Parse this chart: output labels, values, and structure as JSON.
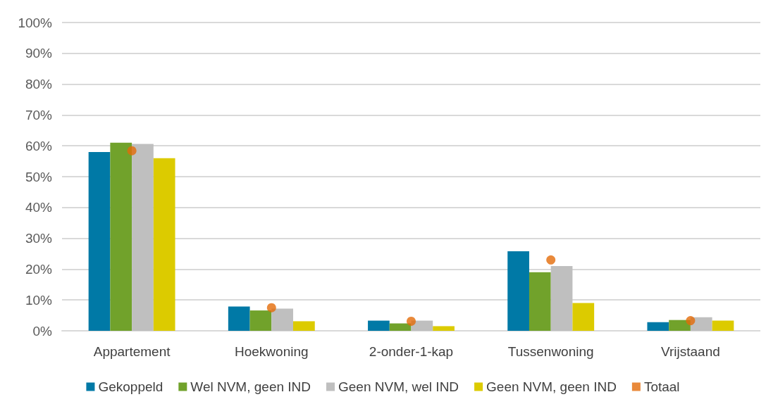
{
  "chart_data": {
    "type": "bar",
    "categories": [
      "Appartement",
      "Hoekwoning",
      "2-onder-1-kap",
      "Tussenwoning",
      "Vrijstaand"
    ],
    "series": [
      {
        "name": "Gekoppeld",
        "color": "#0079a6",
        "values": [
          58,
          7.9,
          3.3,
          25.8,
          2.8
        ]
      },
      {
        "name": "Wel NVM, geen IND",
        "color": "#71a22b",
        "values": [
          61,
          6.6,
          2.4,
          19,
          3.5
        ]
      },
      {
        "name": "Geen NVM, wel IND",
        "color": "#bfbfbf",
        "values": [
          60.6,
          7.2,
          3.3,
          21,
          4.4
        ]
      },
      {
        "name": "Geen NVM, geen IND",
        "color": "#dccb00",
        "values": [
          56,
          3.1,
          1.5,
          9,
          3.3
        ]
      },
      {
        "name": "Totaal",
        "type": "scatter",
        "marker": "circle",
        "color": "#e36c09",
        "x": [
          "Appartement",
          "Hoekwoning",
          "2-onder-1-kap",
          "Tussenwoning",
          "Vrijstaand"
        ],
        "values": [
          58.4,
          7.5,
          3.1,
          23,
          3.3
        ]
      }
    ],
    "ylim": [
      0,
      100
    ],
    "yticks": [
      {
        "value": 0,
        "label": "0%"
      },
      {
        "value": 10,
        "label": "10%"
      },
      {
        "value": 20,
        "label": "20%"
      },
      {
        "value": 30,
        "label": "30%"
      },
      {
        "value": 40,
        "label": "40%"
      },
      {
        "value": 50,
        "label": "50%"
      },
      {
        "value": 60,
        "label": "60%"
      },
      {
        "value": 70,
        "label": "70%"
      },
      {
        "value": 80,
        "label": "80%"
      },
      {
        "value": 90,
        "label": "90%"
      },
      {
        "value": 100,
        "label": "100%"
      }
    ],
    "grid": "y",
    "legend": "bottom"
  }
}
